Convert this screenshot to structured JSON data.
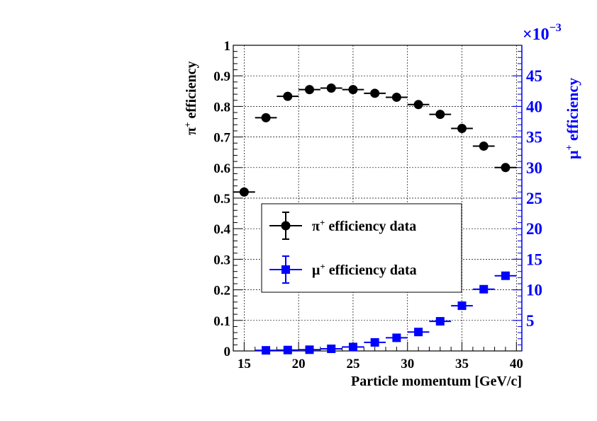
{
  "chart_data": {
    "type": "scatter",
    "title": "",
    "xlabel": "Particle momentum [GeV/c]",
    "ylabel_left_main": "π",
    "ylabel_left_sup": "+",
    "ylabel_left_rest": " efficiency",
    "ylabel_right_main": "μ",
    "ylabel_right_sup": "+",
    "ylabel_right_rest": " efficiency",
    "right_axis_multiplier_base": "×10",
    "right_axis_multiplier_exp": "−3",
    "xlim": [
      14,
      40.5
    ],
    "ylim_left": [
      0,
      1
    ],
    "ylim_right": [
      0,
      50
    ],
    "grid": true,
    "legend_position": "center-left",
    "x_ticks": [
      15,
      20,
      25,
      30,
      35,
      40
    ],
    "x_tick_labels": [
      "15",
      "20",
      "25",
      "30",
      "35",
      "40"
    ],
    "y_left_ticks": [
      0,
      0.1,
      0.2,
      0.3,
      0.4,
      0.5,
      0.6,
      0.7,
      0.8,
      0.9,
      1
    ],
    "y_left_tick_labels": [
      "0",
      "0.1",
      "0.2",
      "0.3",
      "0.4",
      "0.5",
      "0.6",
      "0.7",
      "0.8",
      "0.9",
      "1"
    ],
    "y_right_ticks": [
      5,
      10,
      15,
      20,
      25,
      30,
      35,
      40,
      45
    ],
    "y_right_tick_labels": [
      "5",
      "10",
      "15",
      "20",
      "25",
      "30",
      "35",
      "40",
      "45"
    ],
    "series": [
      {
        "name_main": "π",
        "name_sup": "+",
        "name_rest": " efficiency data",
        "axis": "left",
        "color": "#000000",
        "marker": "circle",
        "x_halfwidth": 1,
        "x": [
          15,
          17,
          19,
          21,
          23,
          25,
          27,
          29,
          31,
          33,
          35,
          37,
          39
        ],
        "y": [
          0.52,
          0.763,
          0.833,
          0.855,
          0.86,
          0.855,
          0.843,
          0.83,
          0.806,
          0.774,
          0.728,
          0.67,
          0.6
        ]
      },
      {
        "name_main": "μ",
        "name_sup": "+",
        "name_rest": " efficiency data",
        "axis": "right",
        "color": "#0000ff",
        "marker": "square",
        "x_halfwidth": 1,
        "x": [
          17,
          19,
          21,
          23,
          25,
          27,
          29,
          31,
          33,
          35,
          37,
          39
        ],
        "y": [
          0.1,
          0.15,
          0.2,
          0.35,
          0.65,
          1.4,
          2.15,
          3.1,
          4.85,
          7.4,
          10.1,
          12.3
        ]
      }
    ]
  }
}
